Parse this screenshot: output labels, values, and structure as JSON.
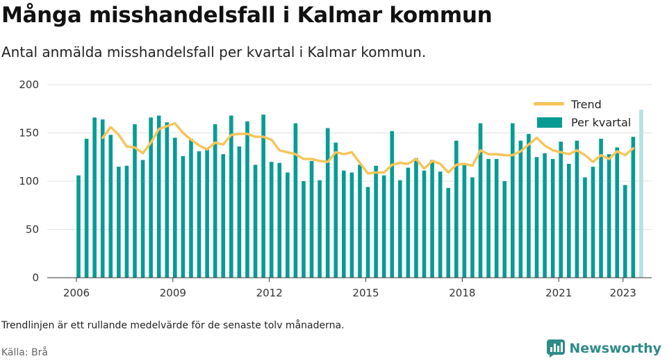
{
  "header": {
    "title": "Många misshandelsfall i Kalmar kommun",
    "subtitle": "Antal anmälda misshandelsfall per kvartal i Kalmar kommun."
  },
  "footer": {
    "note": "Trendlinjen är ett rullande medelvärde för de senaste tolv månaderna.",
    "source": "Källa: Brå",
    "brand": "Newsworthy"
  },
  "colors": {
    "bars": "#069c94",
    "bar_highlight": "#b5e2df",
    "trend": "#f5c55a",
    "grid": "#e0e0e0",
    "brand": "#2e8b87"
  },
  "icons": {
    "brand": "newsworthy-logo-icon"
  },
  "chart_data": {
    "type": "bar",
    "title": "",
    "xlabel": "",
    "ylabel": "",
    "ylim": [
      0,
      200
    ],
    "yticks": [
      0,
      50,
      100,
      150,
      200
    ],
    "xticks": [
      2006,
      2009,
      2012,
      2015,
      2018,
      2021,
      2023
    ],
    "grid": true,
    "legend_position": "top-right",
    "categories": [
      "2006 Q1",
      "2006 Q2",
      "2006 Q3",
      "2006 Q4",
      "2007 Q1",
      "2007 Q2",
      "2007 Q3",
      "2007 Q4",
      "2008 Q1",
      "2008 Q2",
      "2008 Q3",
      "2008 Q4",
      "2009 Q1",
      "2009 Q2",
      "2009 Q3",
      "2009 Q4",
      "2010 Q1",
      "2010 Q2",
      "2010 Q3",
      "2010 Q4",
      "2011 Q1",
      "2011 Q2",
      "2011 Q3",
      "2011 Q4",
      "2012 Q1",
      "2012 Q2",
      "2012 Q3",
      "2012 Q4",
      "2013 Q1",
      "2013 Q2",
      "2013 Q3",
      "2013 Q4",
      "2014 Q1",
      "2014 Q2",
      "2014 Q3",
      "2014 Q4",
      "2015 Q1",
      "2015 Q2",
      "2015 Q3",
      "2015 Q4",
      "2016 Q1",
      "2016 Q2",
      "2016 Q3",
      "2016 Q4",
      "2017 Q1",
      "2017 Q2",
      "2017 Q3",
      "2017 Q4",
      "2018 Q1",
      "2018 Q2",
      "2018 Q3",
      "2018 Q4",
      "2019 Q1",
      "2019 Q2",
      "2019 Q3",
      "2019 Q4",
      "2020 Q1",
      "2020 Q2",
      "2020 Q3",
      "2020 Q4",
      "2021 Q1",
      "2021 Q2",
      "2021 Q3",
      "2021 Q4",
      "2022 Q1",
      "2022 Q2",
      "2022 Q3",
      "2022 Q4",
      "2023 Q1",
      "2023 Q2",
      "2023 Q3"
    ],
    "series": [
      {
        "name": "Per kvartal",
        "type": "bar",
        "values": [
          106,
          144,
          166,
          164,
          148,
          115,
          116,
          159,
          122,
          166,
          168,
          161,
          145,
          126,
          144,
          131,
          134,
          159,
          128,
          168,
          136,
          162,
          117,
          169,
          120,
          119,
          109,
          160,
          100,
          121,
          101,
          155,
          140,
          111,
          109,
          117,
          94,
          116,
          106,
          152,
          101,
          114,
          124,
          111,
          122,
          110,
          93,
          142,
          117,
          104,
          160,
          123,
          123,
          100,
          160,
          142,
          149,
          125,
          129,
          123,
          141,
          118,
          142,
          104,
          115,
          144,
          128,
          135,
          96,
          146,
          174
        ]
      },
      {
        "name": "Trend",
        "type": "line",
        "values": [
          null,
          null,
          null,
          145,
          156,
          148,
          136,
          135,
          129,
          140,
          154,
          157,
          160,
          150,
          143,
          137,
          133,
          140,
          138,
          148,
          149,
          149,
          146,
          146,
          143,
          132,
          130,
          128,
          123,
          123,
          121,
          120,
          130,
          128,
          130,
          119,
          108,
          109,
          109,
          117,
          119,
          118,
          123,
          113,
          121,
          118,
          109,
          117,
          118,
          116,
          132,
          128,
          128,
          127,
          127,
          131,
          138,
          145,
          137,
          132,
          130,
          128,
          132,
          127,
          120,
          127,
          123,
          131,
          127,
          134,
          null
        ]
      }
    ],
    "highlight_last_bar": true
  }
}
